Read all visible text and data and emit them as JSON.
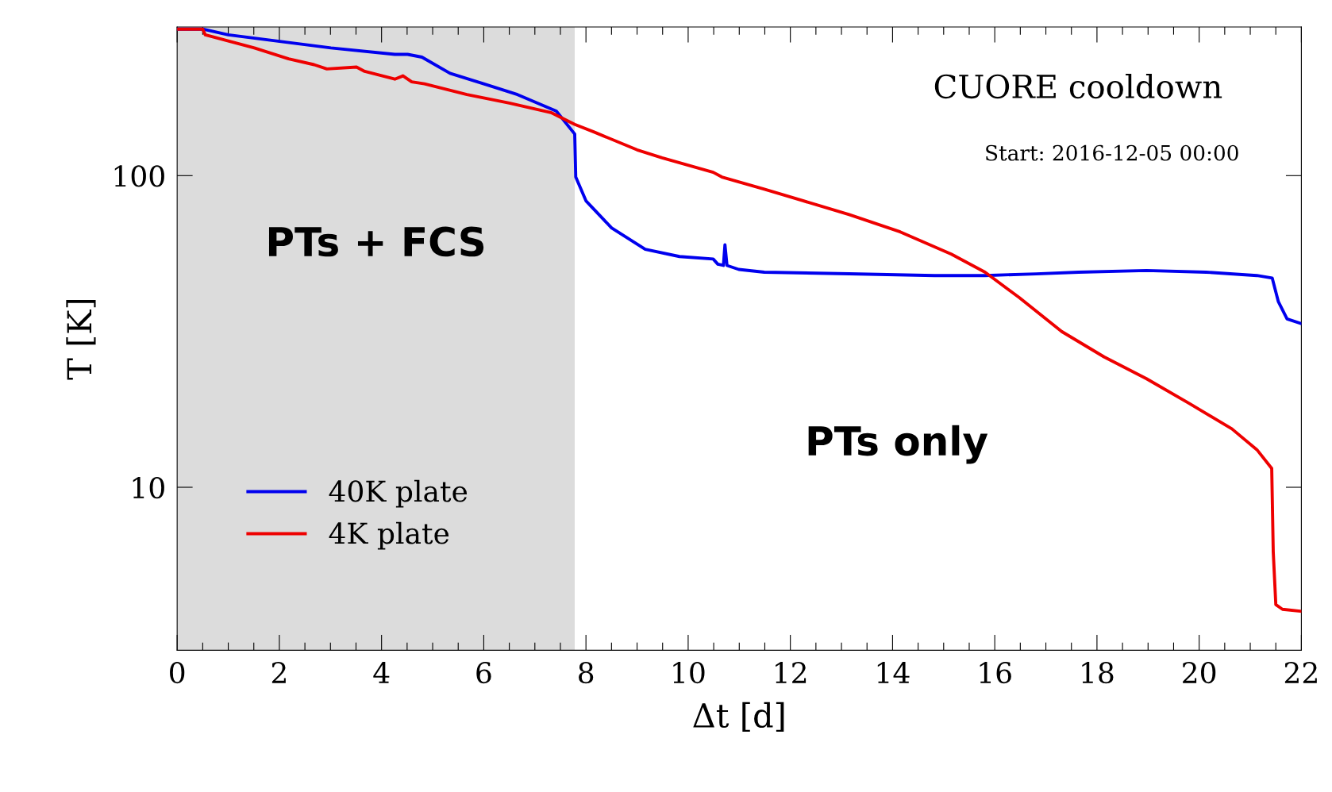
{
  "chart_data": {
    "type": "line",
    "xlabel": "Δt [d]",
    "ylabel": "T [K]",
    "log": "y",
    "xlim": [
      0,
      22
    ],
    "ylim": [
      3,
      300
    ],
    "xticks": [
      0,
      {
        "value": 0.5,
        "label": null
      },
      {
        "value": 1,
        "label": null
      },
      {
        "value": 1.5,
        "label": null
      },
      2,
      {
        "value": 2.5,
        "label": null
      },
      {
        "value": 3,
        "label": null
      },
      {
        "value": 3.5,
        "label": null
      },
      4,
      {
        "value": 4.5,
        "label": null
      },
      {
        "value": 5,
        "label": null
      },
      {
        "value": 5.5,
        "label": null
      },
      6,
      {
        "value": 6.5,
        "label": null
      },
      {
        "value": 7,
        "label": null
      },
      {
        "value": 7.5,
        "label": null
      },
      8,
      {
        "value": 8.5,
        "label": null
      },
      {
        "value": 9,
        "label": null
      },
      {
        "value": 9.5,
        "label": null
      },
      10,
      {
        "value": 10.5,
        "label": null
      },
      {
        "value": 11,
        "label": null
      },
      {
        "value": 11.5,
        "label": null
      },
      12,
      {
        "value": 12.5,
        "label": null
      },
      {
        "value": 13,
        "label": null
      },
      {
        "value": 13.5,
        "label": null
      },
      14,
      {
        "value": 14.5,
        "label": null
      },
      {
        "value": 15,
        "label": null
      },
      {
        "value": 15.5,
        "label": null
      },
      16,
      {
        "value": 16.5,
        "label": null
      },
      {
        "value": 17,
        "label": null
      },
      {
        "value": 17.5,
        "label": null
      },
      18,
      {
        "value": 18.5,
        "label": null
      },
      {
        "value": 19,
        "label": null
      },
      {
        "value": 19.5,
        "label": null
      },
      20,
      {
        "value": 20.5,
        "label": null
      },
      {
        "value": 21,
        "label": null
      },
      {
        "value": 21.5,
        "label": null
      },
      22
    ],
    "yticks": [
      10,
      100
    ],
    "grid": false,
    "legend": "bottom left",
    "marker": "none",
    "line_style": "solid",
    "bands": [
      {
        "axis": "x",
        "from": 0,
        "to": 7.78,
        "label": "PTs + FCS",
        "color": "#dcdcdc"
      }
    ],
    "annotations": [
      "CUORE cooldown",
      "Start: 2016-12-05 00:00",
      "PTs only"
    ],
    "series": [
      {
        "name": "40K plate",
        "color": "#0000ee",
        "x": [
          0,
          0.52,
          1.0,
          3.01,
          4.26,
          4.51,
          4.79,
          5.34,
          6.0,
          6.66,
          7.42,
          7.78,
          7.8,
          8.0,
          8.5,
          9.16,
          9.83,
          10.49,
          10.58,
          10.69,
          10.72,
          10.76,
          10.99,
          11.49,
          13.15,
          14.82,
          15.81,
          16.81,
          17.64,
          18.97,
          20.14,
          21.13,
          21.43,
          21.55,
          21.72,
          22
        ],
        "values": [
          295,
          295,
          283,
          257,
          245,
          245,
          240,
          213,
          197,
          182,
          161,
          136,
          99,
          83,
          68,
          58,
          55,
          54,
          52,
          51.5,
          60,
          51.5,
          50,
          49,
          48.4,
          47.8,
          47.8,
          48.4,
          49,
          49.6,
          49,
          47.8,
          46.9,
          39.4,
          34.7,
          33.5
        ]
      },
      {
        "name": "4K plate",
        "color": "#ee0000",
        "x": [
          0,
          0.5,
          0.55,
          1.51,
          2.18,
          2.68,
          2.93,
          3.51,
          3.67,
          4.26,
          4.42,
          4.59,
          4.84,
          5.67,
          6.5,
          7.33,
          7.78,
          8.16,
          9.0,
          9.49,
          10.49,
          10.66,
          11.49,
          13.15,
          14.15,
          15.15,
          15.81,
          16.48,
          17.31,
          18.14,
          18.97,
          19.8,
          20.64,
          21.13,
          21.42,
          21.45,
          21.5,
          21.63,
          22
        ],
        "values": [
          295,
          295,
          283,
          257,
          237,
          227,
          220,
          223,
          216,
          204,
          209,
          200,
          197,
          182,
          171,
          159,
          146,
          138,
          121,
          114,
          102.5,
          99,
          90.5,
          75,
          66,
          56,
          49,
          40.6,
          31.6,
          26.2,
          22.3,
          18.6,
          15.4,
          13.2,
          11.5,
          6.2,
          4.2,
          4.06,
          4.0
        ]
      }
    ]
  }
}
